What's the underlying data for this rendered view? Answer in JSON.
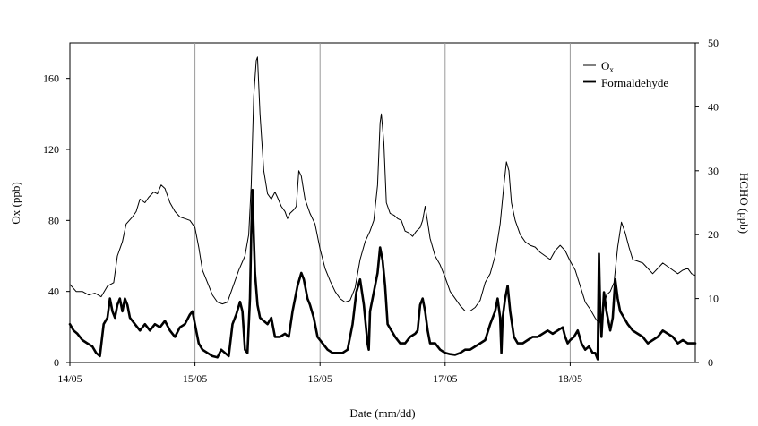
{
  "chart_data": {
    "type": "line",
    "xlabel": "Date (mm/dd)",
    "ylabel_left": "Ox (ppb)",
    "ylabel_right": "HCHO (ppb)",
    "x_ticks": [
      "14/05",
      "15/05",
      "16/05",
      "17/05",
      "18/05"
    ],
    "xlim_days": [
      0,
      5
    ],
    "ylim_left": [
      0,
      180
    ],
    "ylim_right": [
      0,
      50
    ],
    "yticks_left": [
      "0",
      "40",
      "80",
      "120",
      "160"
    ],
    "yticks_right": [
      "0",
      "10",
      "20",
      "30",
      "40",
      "50"
    ],
    "grid": "vertical lines at day boundaries",
    "legend_position": "top-right",
    "legend": [
      {
        "label": "O",
        "subscript": "x",
        "style": "thin"
      },
      {
        "label": "Formaldehyde",
        "style": "bold"
      }
    ],
    "series": [
      {
        "name": "Ox",
        "axis": "left",
        "color": "#000000",
        "width": 1,
        "points": [
          [
            0.0,
            44
          ],
          [
            0.05,
            40
          ],
          [
            0.1,
            40
          ],
          [
            0.15,
            38
          ],
          [
            0.2,
            39
          ],
          [
            0.25,
            37
          ],
          [
            0.3,
            43
          ],
          [
            0.35,
            45
          ],
          [
            0.38,
            60
          ],
          [
            0.42,
            68
          ],
          [
            0.45,
            78
          ],
          [
            0.5,
            82
          ],
          [
            0.53,
            85
          ],
          [
            0.56,
            92
          ],
          [
            0.6,
            90
          ],
          [
            0.63,
            93
          ],
          [
            0.67,
            96
          ],
          [
            0.7,
            95
          ],
          [
            0.73,
            100
          ],
          [
            0.76,
            98
          ],
          [
            0.78,
            94
          ],
          [
            0.8,
            90
          ],
          [
            0.84,
            85
          ],
          [
            0.88,
            82
          ],
          [
            0.92,
            81
          ],
          [
            0.96,
            80
          ],
          [
            1.0,
            76
          ],
          [
            1.03,
            65
          ],
          [
            1.06,
            52
          ],
          [
            1.1,
            45
          ],
          [
            1.14,
            38
          ],
          [
            1.18,
            34
          ],
          [
            1.22,
            33
          ],
          [
            1.26,
            34
          ],
          [
            1.3,
            42
          ],
          [
            1.35,
            52
          ],
          [
            1.4,
            60
          ],
          [
            1.43,
            72
          ],
          [
            1.45,
            100
          ],
          [
            1.47,
            150
          ],
          [
            1.49,
            170
          ],
          [
            1.5,
            172
          ],
          [
            1.52,
            140
          ],
          [
            1.55,
            108
          ],
          [
            1.58,
            95
          ],
          [
            1.61,
            92
          ],
          [
            1.64,
            96
          ],
          [
            1.66,
            93
          ],
          [
            1.69,
            88
          ],
          [
            1.72,
            85
          ],
          [
            1.74,
            81
          ],
          [
            1.76,
            84
          ],
          [
            1.79,
            86
          ],
          [
            1.81,
            88
          ],
          [
            1.83,
            108
          ],
          [
            1.85,
            105
          ],
          [
            1.88,
            92
          ],
          [
            1.92,
            84
          ],
          [
            1.96,
            78
          ],
          [
            2.0,
            64
          ],
          [
            2.04,
            53
          ],
          [
            2.08,
            46
          ],
          [
            2.12,
            40
          ],
          [
            2.16,
            36
          ],
          [
            2.2,
            34
          ],
          [
            2.24,
            35
          ],
          [
            2.28,
            42
          ],
          [
            2.32,
            58
          ],
          [
            2.36,
            68
          ],
          [
            2.4,
            74
          ],
          [
            2.43,
            80
          ],
          [
            2.46,
            100
          ],
          [
            2.48,
            135
          ],
          [
            2.49,
            140
          ],
          [
            2.51,
            124
          ],
          [
            2.53,
            90
          ],
          [
            2.56,
            84
          ],
          [
            2.59,
            83
          ],
          [
            2.62,
            81
          ],
          [
            2.65,
            80
          ],
          [
            2.68,
            74
          ],
          [
            2.71,
            73
          ],
          [
            2.74,
            71
          ],
          [
            2.77,
            74
          ],
          [
            2.8,
            76
          ],
          [
            2.82,
            80
          ],
          [
            2.84,
            88
          ],
          [
            2.86,
            79
          ],
          [
            2.88,
            70
          ],
          [
            2.92,
            60
          ],
          [
            2.96,
            55
          ],
          [
            3.0,
            48
          ],
          [
            3.04,
            40
          ],
          [
            3.08,
            36
          ],
          [
            3.12,
            32
          ],
          [
            3.16,
            29
          ],
          [
            3.2,
            29
          ],
          [
            3.24,
            31
          ],
          [
            3.28,
            35
          ],
          [
            3.32,
            45
          ],
          [
            3.36,
            50
          ],
          [
            3.4,
            60
          ],
          [
            3.44,
            78
          ],
          [
            3.47,
            100
          ],
          [
            3.49,
            113
          ],
          [
            3.51,
            108
          ],
          [
            3.53,
            90
          ],
          [
            3.56,
            80
          ],
          [
            3.6,
            72
          ],
          [
            3.64,
            68
          ],
          [
            3.68,
            66
          ],
          [
            3.72,
            65
          ],
          [
            3.76,
            62
          ],
          [
            3.8,
            60
          ],
          [
            3.84,
            58
          ],
          [
            3.88,
            63
          ],
          [
            3.92,
            66
          ],
          [
            3.96,
            63
          ],
          [
            4.0,
            57
          ],
          [
            4.04,
            52
          ],
          [
            4.08,
            43
          ],
          [
            4.12,
            34
          ],
          [
            4.16,
            30
          ],
          [
            4.2,
            25
          ],
          [
            4.23,
            22
          ],
          [
            4.26,
            28
          ],
          [
            4.29,
            38
          ],
          [
            4.32,
            40
          ],
          [
            4.35,
            45
          ],
          [
            4.38,
            65
          ],
          [
            4.41,
            79
          ],
          [
            4.44,
            73
          ],
          [
            4.47,
            65
          ],
          [
            4.5,
            58
          ],
          [
            4.54,
            57
          ],
          [
            4.58,
            56
          ],
          [
            4.62,
            53
          ],
          [
            4.66,
            50
          ],
          [
            4.7,
            53
          ],
          [
            4.74,
            56
          ],
          [
            4.78,
            54
          ],
          [
            4.82,
            52
          ],
          [
            4.86,
            50
          ],
          [
            4.9,
            52
          ],
          [
            4.94,
            53
          ],
          [
            4.97,
            50
          ],
          [
            5.0,
            49
          ]
        ]
      },
      {
        "name": "Formaldehyde",
        "axis": "right",
        "color": "#000000",
        "width": 2.6,
        "points": [
          [
            0.0,
            6
          ],
          [
            0.03,
            5
          ],
          [
            0.06,
            4.5
          ],
          [
            0.1,
            3.5
          ],
          [
            0.14,
            3
          ],
          [
            0.18,
            2.5
          ],
          [
            0.21,
            1.5
          ],
          [
            0.24,
            1
          ],
          [
            0.27,
            6
          ],
          [
            0.3,
            7
          ],
          [
            0.32,
            10
          ],
          [
            0.34,
            8
          ],
          [
            0.36,
            7
          ],
          [
            0.38,
            9
          ],
          [
            0.4,
            10
          ],
          [
            0.42,
            8
          ],
          [
            0.44,
            10
          ],
          [
            0.46,
            9
          ],
          [
            0.48,
            7
          ],
          [
            0.52,
            6
          ],
          [
            0.56,
            5
          ],
          [
            0.6,
            6
          ],
          [
            0.64,
            5
          ],
          [
            0.68,
            6
          ],
          [
            0.72,
            5.5
          ],
          [
            0.76,
            6.5
          ],
          [
            0.8,
            5
          ],
          [
            0.84,
            4
          ],
          [
            0.88,
            5.5
          ],
          [
            0.92,
            6
          ],
          [
            0.96,
            7.5
          ],
          [
            0.98,
            8
          ],
          [
            1.0,
            6
          ],
          [
            1.03,
            3
          ],
          [
            1.06,
            2
          ],
          [
            1.1,
            1.5
          ],
          [
            1.14,
            1
          ],
          [
            1.18,
            0.8
          ],
          [
            1.21,
            2
          ],
          [
            1.24,
            1.5
          ],
          [
            1.27,
            1
          ],
          [
            1.3,
            6
          ],
          [
            1.33,
            7.5
          ],
          [
            1.36,
            9.5
          ],
          [
            1.38,
            8
          ],
          [
            1.4,
            2
          ],
          [
            1.42,
            1.5
          ],
          [
            1.44,
            10
          ],
          [
            1.45,
            20
          ],
          [
            1.46,
            27
          ],
          [
            1.47,
            20
          ],
          [
            1.48,
            14
          ],
          [
            1.5,
            9
          ],
          [
            1.52,
            7
          ],
          [
            1.55,
            6.5
          ],
          [
            1.58,
            6
          ],
          [
            1.61,
            7
          ],
          [
            1.64,
            4
          ],
          [
            1.68,
            4
          ],
          [
            1.72,
            4.5
          ],
          [
            1.75,
            4
          ],
          [
            1.78,
            8
          ],
          [
            1.8,
            10
          ],
          [
            1.82,
            12
          ],
          [
            1.85,
            14
          ],
          [
            1.87,
            13
          ],
          [
            1.9,
            10
          ],
          [
            1.92,
            9
          ],
          [
            1.95,
            7
          ],
          [
            1.98,
            4
          ],
          [
            2.02,
            3
          ],
          [
            2.06,
            2
          ],
          [
            2.1,
            1.5
          ],
          [
            2.14,
            1.5
          ],
          [
            2.18,
            1.5
          ],
          [
            2.22,
            2
          ],
          [
            2.26,
            6
          ],
          [
            2.29,
            11
          ],
          [
            2.32,
            13
          ],
          [
            2.35,
            9
          ],
          [
            2.38,
            3
          ],
          [
            2.39,
            2
          ],
          [
            2.4,
            8
          ],
          [
            2.43,
            11
          ],
          [
            2.46,
            14
          ],
          [
            2.48,
            18
          ],
          [
            2.5,
            16
          ],
          [
            2.52,
            12
          ],
          [
            2.54,
            6
          ],
          [
            2.57,
            5
          ],
          [
            2.6,
            4
          ],
          [
            2.64,
            3
          ],
          [
            2.68,
            3
          ],
          [
            2.72,
            4
          ],
          [
            2.76,
            4.5
          ],
          [
            2.78,
            5
          ],
          [
            2.8,
            9
          ],
          [
            2.82,
            10
          ],
          [
            2.84,
            8
          ],
          [
            2.86,
            5
          ],
          [
            2.88,
            3
          ],
          [
            2.92,
            3
          ],
          [
            2.96,
            2
          ],
          [
            3.0,
            1.5
          ],
          [
            3.04,
            1.3
          ],
          [
            3.08,
            1.2
          ],
          [
            3.12,
            1.5
          ],
          [
            3.16,
            2
          ],
          [
            3.2,
            2
          ],
          [
            3.24,
            2.5
          ],
          [
            3.28,
            3
          ],
          [
            3.32,
            3.5
          ],
          [
            3.36,
            6
          ],
          [
            3.4,
            8
          ],
          [
            3.42,
            10
          ],
          [
            3.44,
            7
          ],
          [
            3.45,
            1.5
          ],
          [
            3.46,
            7
          ],
          [
            3.48,
            10
          ],
          [
            3.5,
            12
          ],
          [
            3.52,
            8
          ],
          [
            3.55,
            4
          ],
          [
            3.58,
            3
          ],
          [
            3.62,
            3
          ],
          [
            3.66,
            3.5
          ],
          [
            3.7,
            4
          ],
          [
            3.74,
            4
          ],
          [
            3.78,
            4.5
          ],
          [
            3.82,
            5
          ],
          [
            3.86,
            4.5
          ],
          [
            3.9,
            5
          ],
          [
            3.94,
            5.5
          ],
          [
            3.96,
            4
          ],
          [
            3.98,
            3
          ],
          [
            4.0,
            3.5
          ],
          [
            4.03,
            4
          ],
          [
            4.06,
            5
          ],
          [
            4.09,
            3
          ],
          [
            4.12,
            2
          ],
          [
            4.15,
            2.5
          ],
          [
            4.18,
            1.5
          ],
          [
            4.2,
            1.5
          ],
          [
            4.22,
            0.5
          ],
          [
            4.23,
            17
          ],
          [
            4.24,
            8
          ],
          [
            4.25,
            4
          ],
          [
            4.27,
            11
          ],
          [
            4.29,
            8
          ],
          [
            4.32,
            5
          ],
          [
            4.34,
            7
          ],
          [
            4.36,
            13
          ],
          [
            4.38,
            10
          ],
          [
            4.4,
            8
          ],
          [
            4.43,
            7
          ],
          [
            4.46,
            6
          ],
          [
            4.5,
            5
          ],
          [
            4.54,
            4.5
          ],
          [
            4.58,
            4
          ],
          [
            4.62,
            3
          ],
          [
            4.66,
            3.5
          ],
          [
            4.7,
            4
          ],
          [
            4.74,
            5
          ],
          [
            4.78,
            4.5
          ],
          [
            4.82,
            4
          ],
          [
            4.86,
            3
          ],
          [
            4.9,
            3.5
          ],
          [
            4.94,
            3
          ],
          [
            4.97,
            3
          ],
          [
            5.0,
            3
          ]
        ]
      }
    ]
  }
}
